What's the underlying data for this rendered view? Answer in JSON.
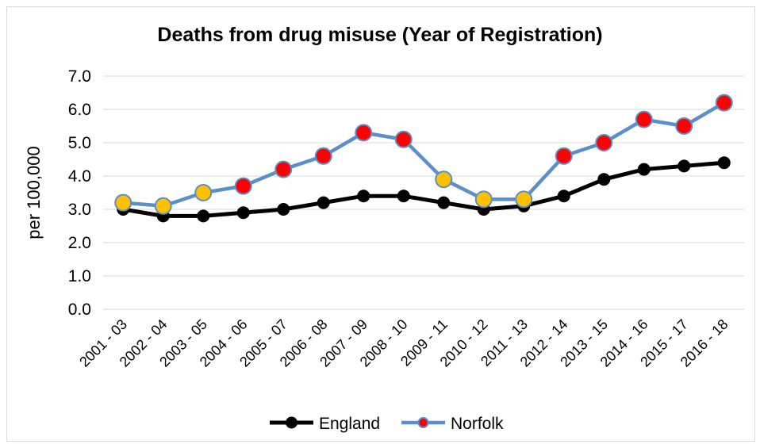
{
  "chart_data": {
    "type": "line",
    "title": "Deaths from drug misuse (Year of Registration)",
    "xlabel": "",
    "ylabel": "per 100,000",
    "ylim": [
      0,
      7
    ],
    "yticks": [
      "0.0",
      "1.0",
      "2.0",
      "3.0",
      "4.0",
      "5.0",
      "6.0",
      "7.0"
    ],
    "grid": true,
    "legend_position": "bottom",
    "categories": [
      "2001 - 03",
      "2002 - 04",
      "2003 - 05",
      "2004 - 06",
      "2005 - 07",
      "2006 - 08",
      "2007 - 09",
      "2008 - 10",
      "2009 - 11",
      "2010 - 12",
      "2011 - 13",
      "2012 - 14",
      "2013 - 15",
      "2014 - 16",
      "2015 - 17",
      "2016 - 18"
    ],
    "series": [
      {
        "name": "England",
        "line_color": "#000000",
        "marker_color": "#000000",
        "values": [
          3.0,
          2.8,
          2.8,
          2.9,
          3.0,
          3.2,
          3.4,
          3.4,
          3.2,
          3.0,
          3.1,
          3.4,
          3.9,
          4.2,
          4.3,
          4.4
        ]
      },
      {
        "name": "Norfolk",
        "line_color": "#5b8fc9",
        "marker_color": "#ff0000",
        "marker_colors": [
          "#ffc000",
          "#ffc000",
          "#ffc000",
          "#ff0000",
          "#ff0000",
          "#ff0000",
          "#ff0000",
          "#ff0000",
          "#ffc000",
          "#ffc000",
          "#ffc000",
          "#ff0000",
          "#ff0000",
          "#ff0000",
          "#ff0000",
          "#ff0000"
        ],
        "values": [
          3.2,
          3.1,
          3.5,
          3.7,
          4.2,
          4.6,
          5.3,
          5.1,
          3.9,
          3.3,
          3.3,
          4.6,
          5.0,
          5.7,
          5.5,
          6.2
        ]
      }
    ]
  }
}
